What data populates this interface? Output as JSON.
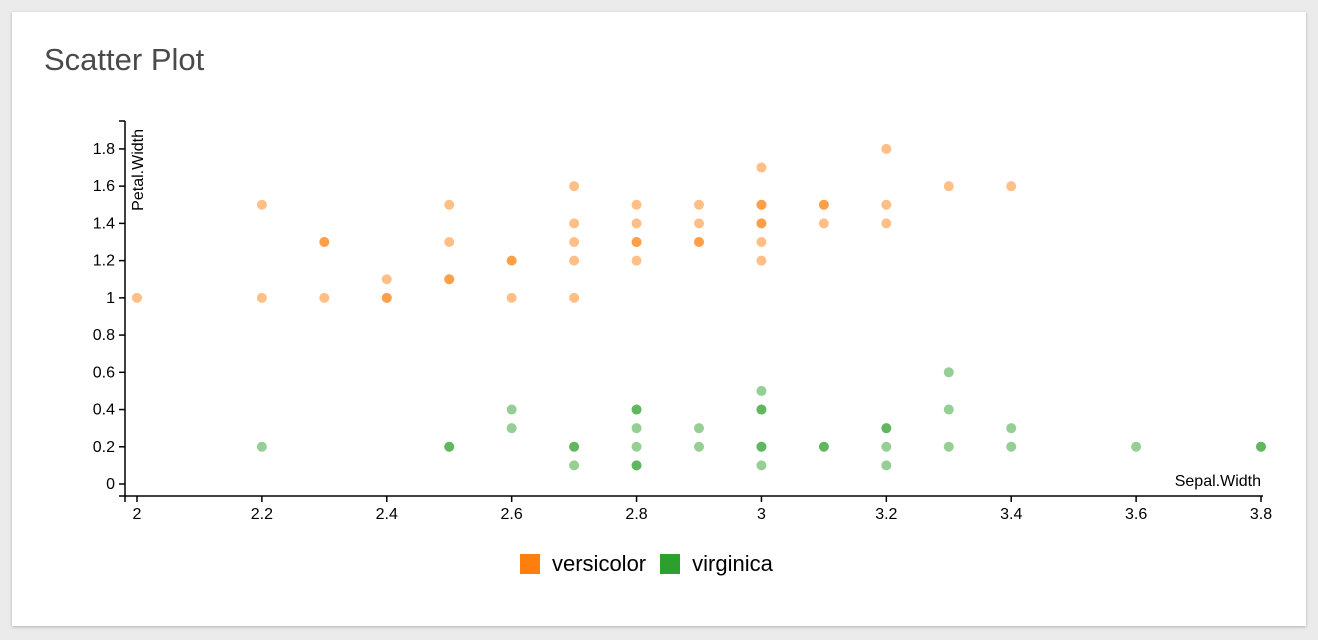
{
  "card": {
    "title": "Scatter Plot"
  },
  "colors": {
    "versicolor": "#ff7f0e",
    "virginica": "#2ca02c"
  },
  "chart_data": {
    "type": "scatter",
    "xlabel": "Sepal.Width",
    "ylabel": "Petal.Width",
    "xlim": [
      2,
      3.8
    ],
    "ylim": [
      0,
      1.95
    ],
    "x_ticks": [
      "2",
      "2.2",
      "2.4",
      "2.6",
      "2.8",
      "3",
      "3.2",
      "3.4",
      "3.6",
      "3.8"
    ],
    "y_ticks": [
      "0",
      "0.2",
      "0.4",
      "0.6",
      "0.8",
      "1",
      "1.2",
      "1.4",
      "1.6",
      "1.8"
    ],
    "legend": [
      "versicolor",
      "virginica"
    ],
    "legend_position": "bottom",
    "grid": false,
    "series": [
      {
        "name": "versicolor",
        "points": [
          [
            2.0,
            1.0
          ],
          [
            2.2,
            1.5
          ],
          [
            2.2,
            1.0
          ],
          [
            2.3,
            1.3
          ],
          [
            2.3,
            1.3
          ],
          [
            2.3,
            1.0
          ],
          [
            2.4,
            1.1
          ],
          [
            2.4,
            1.0
          ],
          [
            2.4,
            1.0
          ],
          [
            2.5,
            1.5
          ],
          [
            2.5,
            1.3
          ],
          [
            2.5,
            1.1
          ],
          [
            2.5,
            1.1
          ],
          [
            2.6,
            1.2
          ],
          [
            2.6,
            1.2
          ],
          [
            2.6,
            1.0
          ],
          [
            2.7,
            1.6
          ],
          [
            2.7,
            1.4
          ],
          [
            2.7,
            1.3
          ],
          [
            2.7,
            1.2
          ],
          [
            2.7,
            1.0
          ],
          [
            2.8,
            1.5
          ],
          [
            2.8,
            1.4
          ],
          [
            2.8,
            1.3
          ],
          [
            2.8,
            1.3
          ],
          [
            2.8,
            1.2
          ],
          [
            2.9,
            1.5
          ],
          [
            2.9,
            1.4
          ],
          [
            2.9,
            1.3
          ],
          [
            2.9,
            1.3
          ],
          [
            3.0,
            1.7
          ],
          [
            3.0,
            1.5
          ],
          [
            3.0,
            1.5
          ],
          [
            3.0,
            1.4
          ],
          [
            3.0,
            1.4
          ],
          [
            3.0,
            1.3
          ],
          [
            3.0,
            1.2
          ],
          [
            3.1,
            1.5
          ],
          [
            3.1,
            1.5
          ],
          [
            3.1,
            1.4
          ],
          [
            3.2,
            1.8
          ],
          [
            3.2,
            1.5
          ],
          [
            3.2,
            1.4
          ],
          [
            3.3,
            1.6
          ],
          [
            3.4,
            1.6
          ]
        ]
      },
      {
        "name": "virginica",
        "points": [
          [
            2.2,
            0.2
          ],
          [
            2.5,
            0.2
          ],
          [
            2.5,
            0.2
          ],
          [
            2.6,
            0.4
          ],
          [
            2.6,
            0.3
          ],
          [
            2.7,
            0.2
          ],
          [
            2.7,
            0.2
          ],
          [
            2.7,
            0.1
          ],
          [
            2.8,
            0.4
          ],
          [
            2.8,
            0.4
          ],
          [
            2.8,
            0.3
          ],
          [
            2.8,
            0.2
          ],
          [
            2.8,
            0.1
          ],
          [
            2.8,
            0.1
          ],
          [
            2.9,
            0.3
          ],
          [
            2.9,
            0.2
          ],
          [
            3.0,
            0.5
          ],
          [
            3.0,
            0.4
          ],
          [
            3.0,
            0.4
          ],
          [
            3.0,
            0.2
          ],
          [
            3.0,
            0.2
          ],
          [
            3.0,
            0.1
          ],
          [
            3.1,
            0.2
          ],
          [
            3.1,
            0.2
          ],
          [
            3.2,
            0.3
          ],
          [
            3.2,
            0.3
          ],
          [
            3.2,
            0.2
          ],
          [
            3.2,
            0.1
          ],
          [
            3.3,
            0.6
          ],
          [
            3.3,
            0.4
          ],
          [
            3.3,
            0.2
          ],
          [
            3.4,
            0.3
          ],
          [
            3.4,
            0.2
          ],
          [
            3.6,
            0.2
          ],
          [
            3.8,
            0.2
          ],
          [
            3.8,
            0.2
          ]
        ]
      }
    ]
  }
}
